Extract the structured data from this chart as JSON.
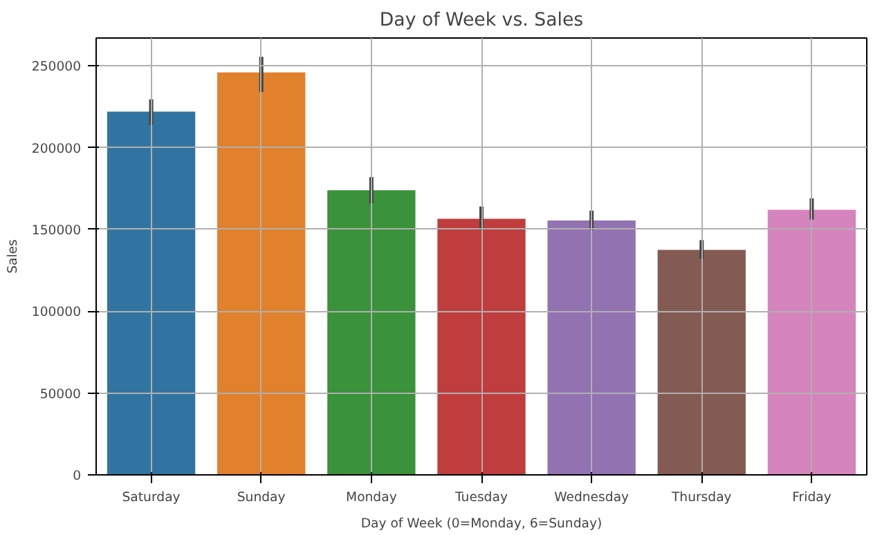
{
  "chart_data": {
    "type": "bar",
    "title": "Day of Week vs. Sales",
    "xlabel": "Day of Week (0=Monday, 6=Sunday)",
    "ylabel": "Sales",
    "categories": [
      "Saturday",
      "Sunday",
      "Monday",
      "Tuesday",
      "Wednesday",
      "Thursday",
      "Friday"
    ],
    "values": [
      222000,
      246000,
      174000,
      156500,
      155500,
      137500,
      162000
    ],
    "colors": [
      "#3274a1",
      "#e1812c",
      "#3a923a",
      "#c03d3e",
      "#9372b2",
      "#845b53",
      "#d684bd"
    ],
    "errors": [
      [
        214000,
        229500
      ],
      [
        234000,
        255500
      ],
      [
        166000,
        182000
      ],
      [
        149500,
        164000
      ],
      [
        149500,
        161500
      ],
      [
        132000,
        143500
      ],
      [
        156000,
        169000
      ]
    ],
    "ylim": [
      0,
      267000
    ],
    "yticks": [
      0,
      50000,
      100000,
      150000,
      200000,
      250000
    ],
    "grid": true
  }
}
